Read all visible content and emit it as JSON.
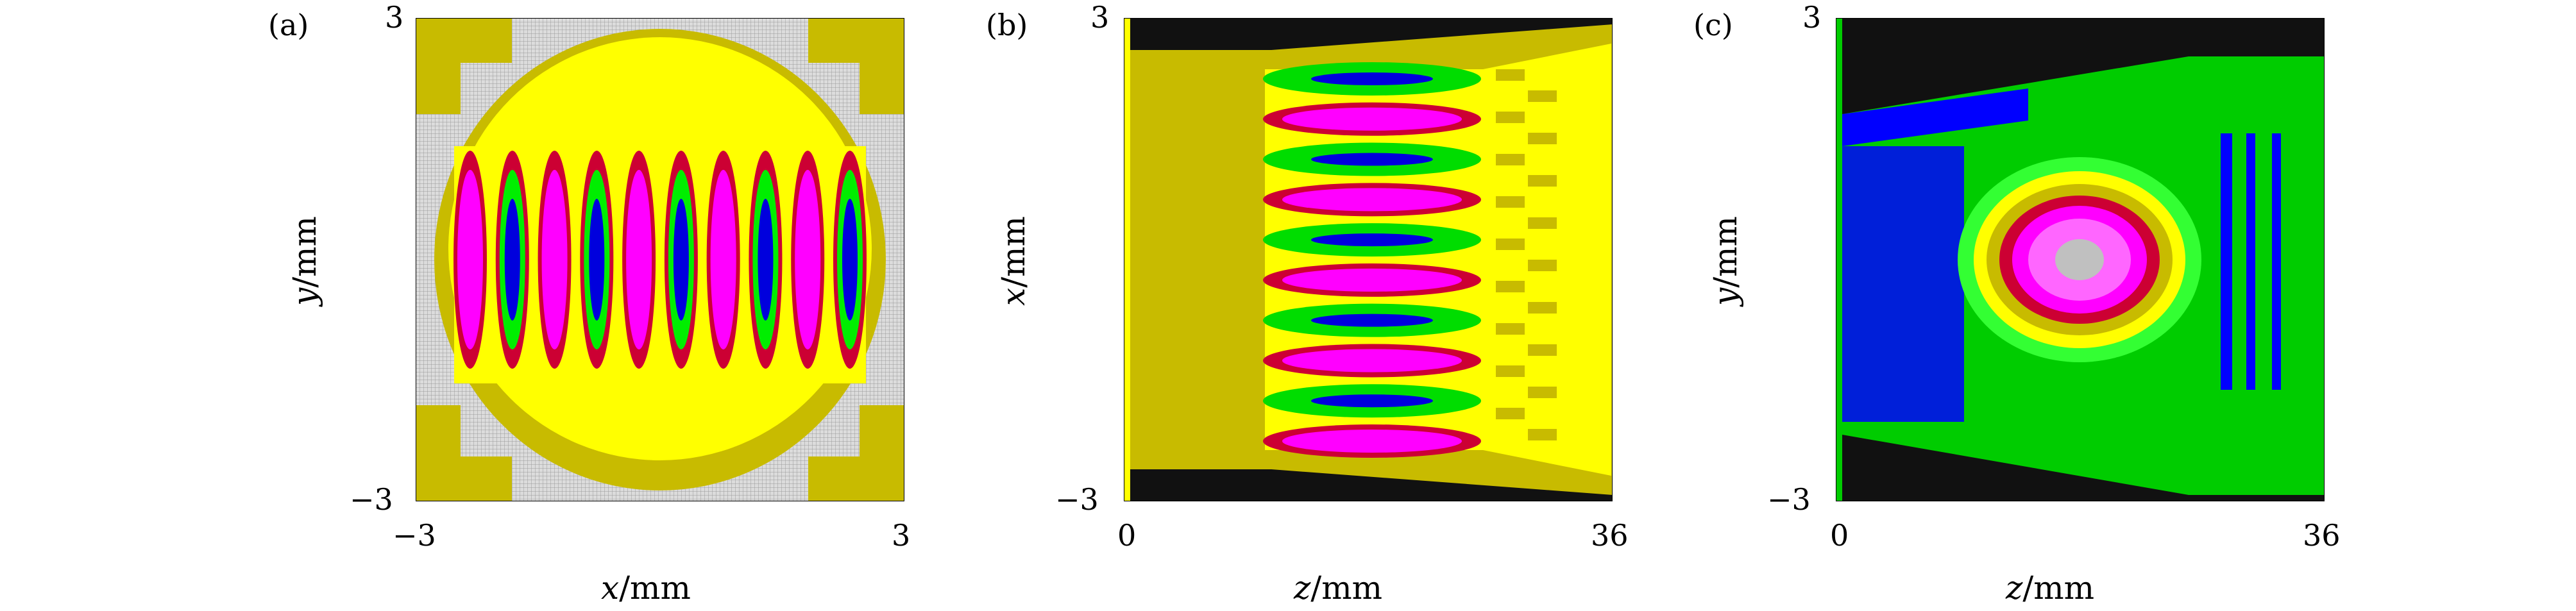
{
  "chart_data": [
    {
      "type": "heatmap",
      "panel": "(a)",
      "xlabel_var": "x",
      "xlabel_unit": "/mm",
      "ylabel_var": "y",
      "ylabel_unit": "/mm",
      "xlim": [
        -3,
        3
      ],
      "ylim": [
        -3,
        3
      ],
      "x_ticks": [
        "−3",
        "3"
      ],
      "y_ticks": [
        "3",
        "−3"
      ],
      "lobes": 10,
      "colors": {
        "grid": "#9a9a9a",
        "olive": "#c8bb00",
        "yellow": "#ffff00",
        "red": "#cc0033",
        "green": "#00ee00",
        "blue": "#0000dd",
        "magenta": "#ff00ff"
      }
    },
    {
      "type": "heatmap",
      "panel": "(b)",
      "xlabel_var": "z",
      "xlabel_unit": "/mm",
      "ylabel_var": "x",
      "ylabel_unit": "/mm",
      "xlim": [
        0,
        36
      ],
      "ylim": [
        -3,
        3
      ],
      "x_ticks": [
        "0",
        "36"
      ],
      "y_ticks": [
        "3",
        "−3"
      ],
      "lobes": 10,
      "colors": {
        "black": "#111111",
        "olive": "#c8bb00",
        "yellow": "#ffff00",
        "green": "#00dd00",
        "blue": "#0000dd",
        "magenta": "#ff00ff",
        "red": "#cc0033"
      }
    },
    {
      "type": "heatmap",
      "panel": "(c)",
      "xlabel_var": "z",
      "xlabel_unit": "/mm",
      "ylabel_var": "y",
      "ylabel_unit": "/mm",
      "xlim": [
        0,
        36
      ],
      "ylim": [
        -3,
        3
      ],
      "x_ticks": [
        "0",
        "36"
      ],
      "y_ticks": [
        "3",
        "−3"
      ],
      "colors": {
        "black": "#111111",
        "blue": "#0000ff",
        "green": "#00cc00",
        "lightgreen": "#33ff33",
        "yellow": "#ffff00",
        "olive": "#c8bb00",
        "red": "#cc0033",
        "magenta": "#ff00ff",
        "pink": "#ff66ff",
        "gray": "#c0c0c0"
      }
    }
  ]
}
